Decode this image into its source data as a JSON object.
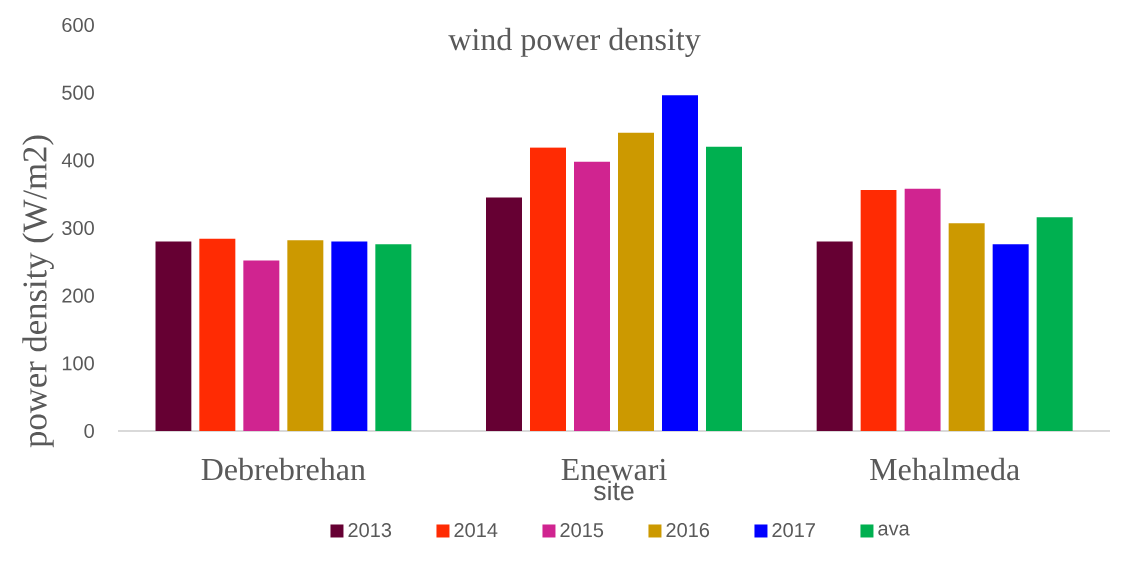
{
  "chart_data": {
    "type": "bar",
    "title": "wind power density",
    "xlabel": "site",
    "ylabel": "power density (W/m2)",
    "categories": [
      "Debrebrehan",
      "Enewari",
      "Mehalmeda"
    ],
    "series": [
      {
        "name": "2013",
        "color": "#660033",
        "values": [
          280,
          345,
          280
        ]
      },
      {
        "name": "2014",
        "color": "#ff2b03",
        "values": [
          284,
          419,
          356
        ]
      },
      {
        "name": "2015",
        "color": "#d02490",
        "values": [
          252,
          398,
          358
        ]
      },
      {
        "name": "2016",
        "color": "#cc9900",
        "values": [
          282,
          441,
          307
        ]
      },
      {
        "name": "2017",
        "color": "#0000ff",
        "values": [
          280,
          496,
          276
        ]
      },
      {
        "name": "ava",
        "color": "#00b050",
        "values": [
          276,
          420,
          316
        ]
      }
    ],
    "ylim": [
      0,
      600
    ],
    "yticks": [
      0,
      100,
      200,
      300,
      400,
      500,
      600
    ],
    "legend": "bottom"
  }
}
